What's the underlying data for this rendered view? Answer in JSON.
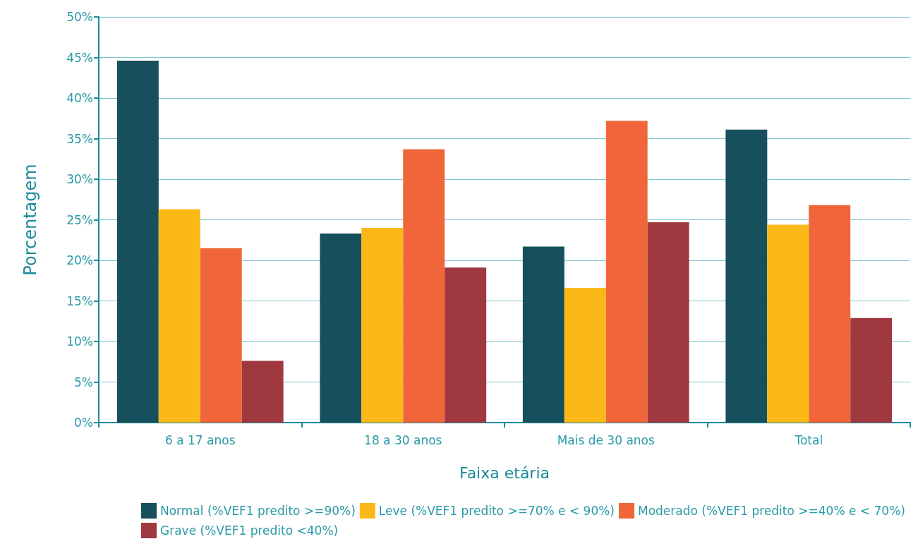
{
  "chart_data": {
    "type": "bar",
    "xlabel": "Faixa etária",
    "ylabel": "Porcentagem",
    "categories": [
      "6 a 17 anos",
      "18 a 30 anos",
      "Mais de 30 anos",
      "Total"
    ],
    "series": [
      {
        "name": "Normal (%VEF1 predito >=90%)",
        "color": "#17505c",
        "values": [
          44.6,
          23.3,
          21.7,
          36.1
        ]
      },
      {
        "name": "Leve (%VEF1 predito >=70% e < 90%)",
        "color": "#fbb917",
        "values": [
          26.3,
          24.0,
          16.6,
          24.4
        ]
      },
      {
        "name": "Moderado (%VEF1 predito >=40% e < 70%)",
        "color": "#f0663a",
        "values": [
          21.5,
          33.7,
          37.2,
          26.8
        ]
      },
      {
        "name": "Grave (%VEF1 predito <40%)",
        "color": "#a0393f",
        "values": [
          7.6,
          19.1,
          24.7,
          12.9
        ]
      }
    ],
    "ylim": [
      0,
      50
    ],
    "yticks": [
      {
        "value": 0,
        "label": "0%"
      },
      {
        "value": 5,
        "label": "5%"
      },
      {
        "value": 10,
        "label": "10%"
      },
      {
        "value": 15,
        "label": "15%"
      },
      {
        "value": 20,
        "label": "20%"
      },
      {
        "value": 25,
        "label": "25%"
      },
      {
        "value": 30,
        "label": "30%"
      },
      {
        "value": 35,
        "label": "35%"
      },
      {
        "value": 40,
        "label": "40%"
      },
      {
        "value": 45,
        "label": "45%"
      },
      {
        "value": 50,
        "label": "50%"
      }
    ],
    "grid": "y",
    "legend": "bottom"
  }
}
